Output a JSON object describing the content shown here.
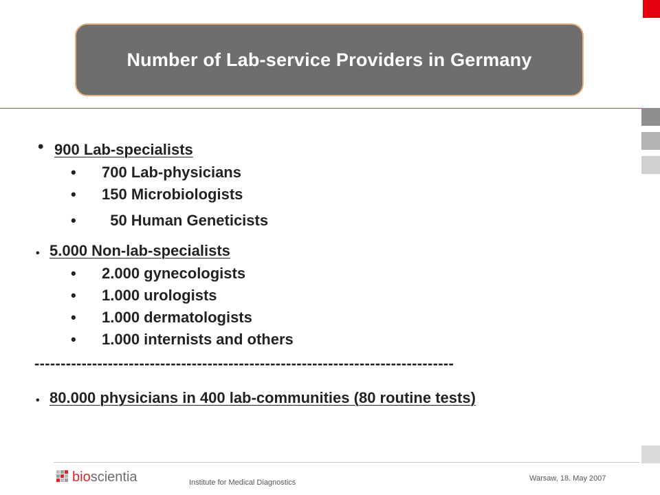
{
  "title": "Number of Lab-service Providers in Germany",
  "groups": [
    {
      "heading": "900 Lab-specialists",
      "items": [
        "700 Lab-physicians",
        "150 Microbiologists",
        "  50 Human Geneticists"
      ]
    },
    {
      "heading": "5.000 Non-lab-specialists",
      "items": [
        "2.000 gynecologists",
        "1.000 urologists",
        "1.000 dermatologists",
        "1.000 internists and others"
      ]
    }
  ],
  "separator": "--------------------------------------------------------------------------------",
  "summary": "80.000 physicians in 400 lab-communities (80 routine tests)",
  "bullet_glyph": "•",
  "footer": {
    "logo_bio": "bio",
    "logo_scientia": "scientia",
    "institute": "Institute for Medical Diagnostics",
    "place_date": "Warsaw, 18. May 2007"
  },
  "colors": {
    "accent_red": "#e3000f",
    "title_box": "#6e6e6e",
    "title_border": "#e3b27c"
  }
}
